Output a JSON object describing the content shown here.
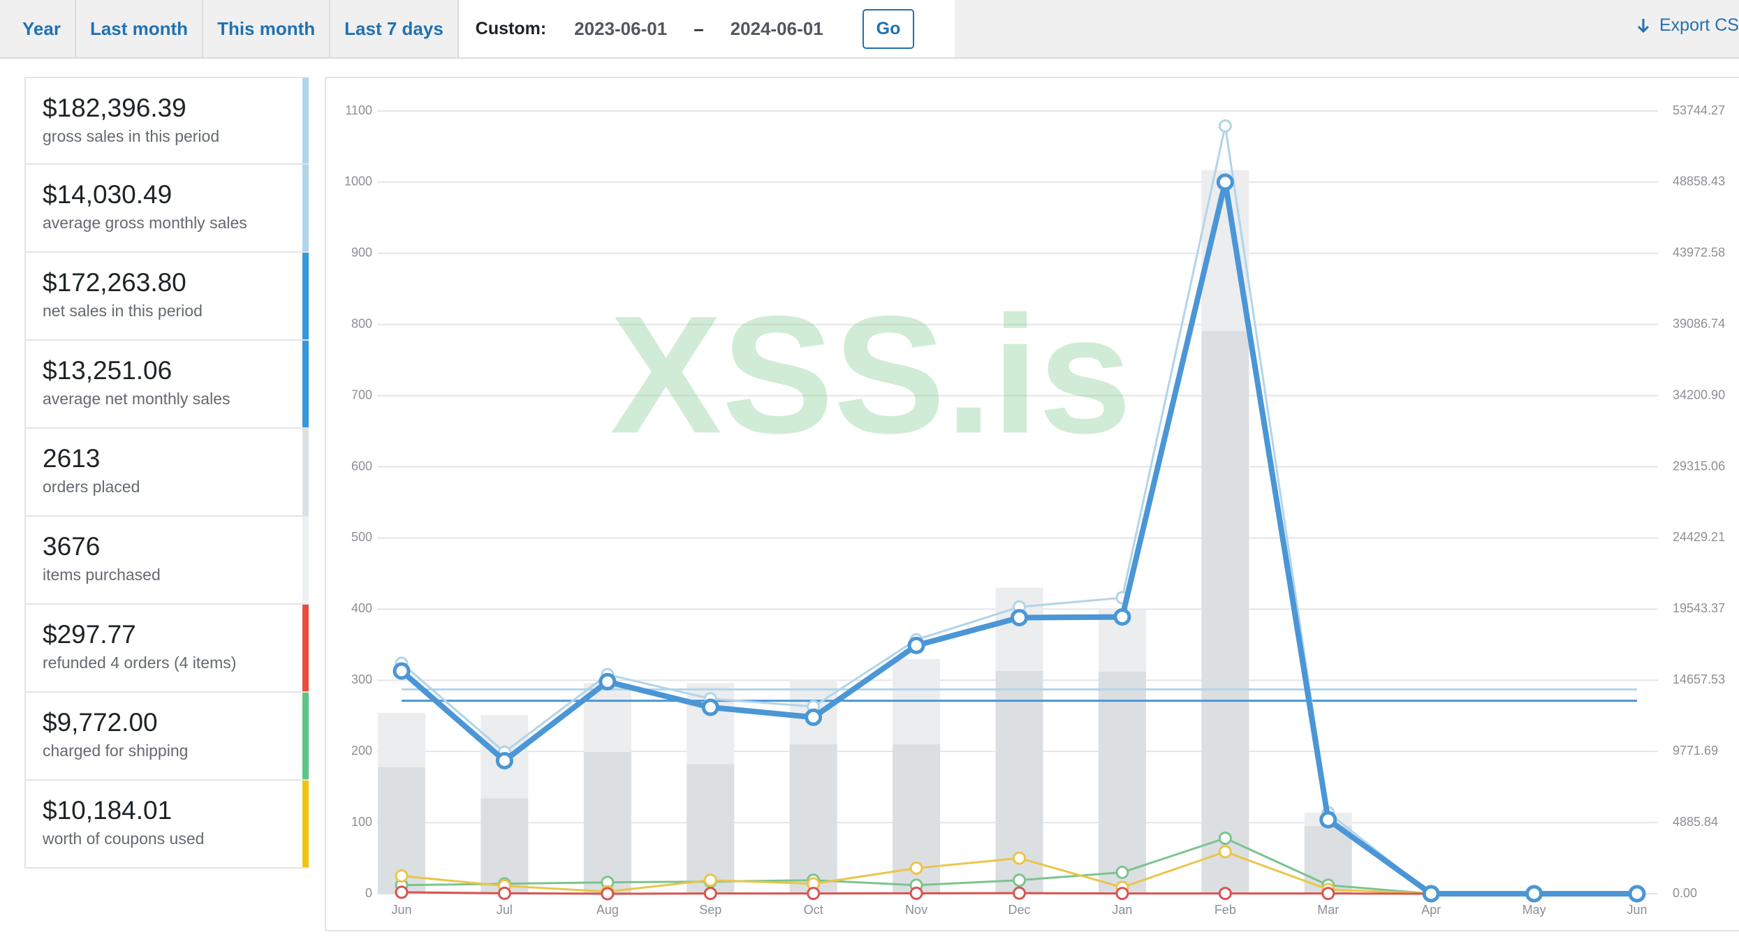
{
  "toolbar": {
    "tabs": [
      "Year",
      "Last month",
      "This month",
      "Last 7 days"
    ],
    "custom_label": "Custom:",
    "start_date": "2023-06-01",
    "separator": "–",
    "end_date": "2024-06-01",
    "go": "Go",
    "export": "Export CS"
  },
  "summary": [
    {
      "value": "$182,396.39",
      "label": "gross sales in this period",
      "color": "#b1d4ea"
    },
    {
      "value": "$14,030.49",
      "label": "average gross monthly sales",
      "color": "#b1d4ea"
    },
    {
      "value": "$172,263.80",
      "label": "net sales in this period",
      "color": "#3498db"
    },
    {
      "value": "$13,251.06",
      "label": "average net monthly sales",
      "color": "#3498db"
    },
    {
      "value": "2613",
      "label": "orders placed",
      "color": "#dbe1e3"
    },
    {
      "value": "3676",
      "label": "items purchased",
      "color": "#ecf0f1"
    },
    {
      "value": "$297.77",
      "label": "refunded 4 orders (4 items)",
      "color": "#e74c3c"
    },
    {
      "value": "$9,772.00",
      "label": "charged for shipping",
      "color": "#5cc488"
    },
    {
      "value": "$10,184.01",
      "label": "worth of coupons used",
      "color": "#f1c40f"
    }
  ],
  "chart_data": {
    "type": "combo",
    "watermark": "XSS.is",
    "categories": [
      "Jun",
      "Jul",
      "Aug",
      "Sep",
      "Oct",
      "Nov",
      "Dec",
      "Jan",
      "Feb",
      "Mar",
      "Apr",
      "May",
      "Jun"
    ],
    "ylim": [
      0,
      1100
    ],
    "yticks": [
      0,
      100,
      200,
      300,
      400,
      500,
      600,
      700,
      800,
      900,
      1000,
      1100
    ],
    "y2lim": [
      0,
      53744.27
    ],
    "y2ticks": [
      {
        "value": 0,
        "label": "0.00"
      },
      4885.84,
      9771.69,
      14657.53,
      19543.37,
      24429.21,
      29315.06,
      {
        "value": 34200.9,
        "label": "34200.90"
      },
      39086.74,
      43972.58,
      48858.43,
      53744.27
    ],
    "grid": true,
    "series": [
      {
        "type": "bar",
        "color": "#ecedef",
        "values": [
          254,
          251,
          296,
          296,
          301,
          330,
          430,
          399,
          1017,
          114,
          0,
          0,
          0
        ]
      },
      {
        "type": "bar",
        "color": "#dbdfe2",
        "values": [
          178,
          134,
          199,
          182,
          210,
          210,
          313,
          312,
          791,
          95,
          0,
          0,
          0
        ]
      },
      {
        "type": "line",
        "axis": "y2",
        "color": "#b1d4ea",
        "width": 3,
        "values": [
          15830,
          9723,
          15048,
          13387,
          12850,
          17442,
          19690,
          20325,
          52718,
          5570,
          0,
          0,
          0
        ]
      },
      {
        "type": "line",
        "axis": "y2",
        "color": "#4a96d6",
        "width": 8,
        "values": [
          15292,
          9136,
          14560,
          12801,
          12117,
          17051,
          18957,
          19006,
          48858,
          5081,
          0,
          0,
          0
        ]
      },
      {
        "type": "line",
        "axis": "y2",
        "color": "#7cc38f",
        "width": 3,
        "values": [
          586,
          684,
          782,
          831,
          928,
          586,
          928,
          1466,
          3811,
          586,
          0,
          0,
          0
        ]
      },
      {
        "type": "line",
        "axis": "y2",
        "color": "#ebc54a",
        "width": 3,
        "values": [
          1221,
          537,
          147,
          928,
          684,
          1759,
          2443,
          440,
          2883,
          293,
          0,
          0,
          0
        ]
      },
      {
        "type": "line",
        "axis": "y2",
        "color": "#d9534f",
        "width": 3,
        "values": [
          100,
          30,
          0,
          20,
          20,
          30,
          40,
          20,
          20,
          17,
          0,
          0,
          0
        ]
      }
    ],
    "averages": [
      {
        "axis": "y2",
        "color": "#b1d4ea",
        "value": 14030.49
      },
      {
        "axis": "y2",
        "color": "#4a96d6",
        "value": 13251.06
      }
    ]
  }
}
